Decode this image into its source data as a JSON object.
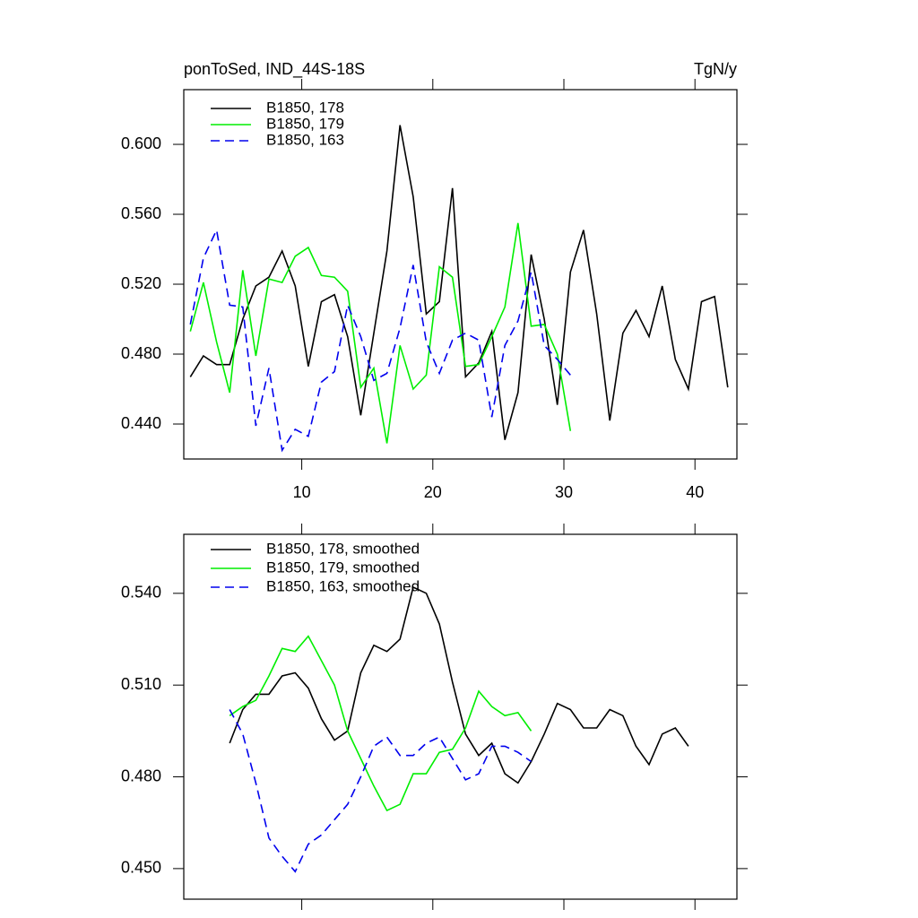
{
  "chart_data": [
    {
      "type": "line",
      "title": "ponToSed, IND_44S-18S",
      "units": "TgN/y",
      "xlim": [
        1,
        43.2
      ],
      "ylim": [
        0.42,
        0.6313
      ],
      "xticks": [
        10,
        20,
        30,
        40
      ],
      "xtick_labels": true,
      "yticks": [
        {
          "value": 0.44,
          "label": "0.440"
        },
        {
          "value": 0.48,
          "label": "0.480"
        },
        {
          "value": 0.52,
          "label": "0.520"
        },
        {
          "value": 0.56,
          "label": "0.560"
        },
        {
          "value": 0.6,
          "label": "0.600"
        }
      ],
      "legend": "top-left",
      "series": [
        {
          "name": "B1850, 178",
          "color": "#000000",
          "dash": false,
          "x": [
            1.5,
            2.5,
            3.5,
            4.5,
            5.5,
            6.5,
            7.5,
            8.5,
            9.5,
            10.5,
            11.5,
            12.5,
            13.5,
            14.5,
            15.5,
            16.5,
            17.5,
            18.5,
            19.5,
            20.5,
            21.5,
            22.5,
            23.5,
            24.5,
            25.5,
            26.5,
            27.5,
            28.5,
            29.5,
            30.5,
            31.5,
            32.5,
            33.5,
            34.5,
            35.5,
            36.5,
            37.5,
            38.5,
            39.5,
            40.5,
            41.5,
            42.5
          ],
          "values": [
            0.467,
            0.479,
            0.474,
            0.474,
            0.5,
            0.519,
            0.524,
            0.539,
            0.519,
            0.473,
            0.51,
            0.514,
            0.49,
            0.445,
            0.492,
            0.539,
            0.611,
            0.57,
            0.503,
            0.51,
            0.575,
            0.467,
            0.475,
            0.493,
            0.431,
            0.458,
            0.537,
            0.5,
            0.451,
            0.527,
            0.551,
            0.503,
            0.442,
            0.492,
            0.505,
            0.49,
            0.519,
            0.477,
            0.46,
            0.51,
            0.513,
            0.461
          ]
        },
        {
          "name": "B1850, 179",
          "color": "#00ee00",
          "dash": false,
          "x": [
            1.5,
            2.5,
            3.5,
            4.5,
            5.5,
            6.5,
            7.5,
            8.5,
            9.5,
            10.5,
            11.5,
            12.5,
            13.5,
            14.5,
            15.5,
            16.5,
            17.5,
            18.5,
            19.5,
            20.5,
            21.5,
            22.5,
            23.5,
            24.5,
            25.5,
            26.5,
            27.5,
            28.5,
            29.5,
            30.5
          ],
          "values": [
            0.493,
            0.521,
            0.487,
            0.458,
            0.528,
            0.479,
            0.523,
            0.521,
            0.536,
            0.541,
            0.525,
            0.524,
            0.516,
            0.461,
            0.472,
            0.429,
            0.485,
            0.46,
            0.468,
            0.53,
            0.524,
            0.473,
            0.474,
            0.49,
            0.507,
            0.555,
            0.496,
            0.497,
            0.48,
            0.436
          ]
        },
        {
          "name": "B1850, 163",
          "color": "#0000ee",
          "dash": true,
          "x": [
            1.5,
            2.5,
            3.5,
            4.5,
            5.5,
            6.5,
            7.5,
            8.5,
            9.5,
            10.5,
            11.5,
            12.5,
            13.5,
            14.5,
            15.5,
            16.5,
            17.5,
            18.5,
            19.5,
            20.5,
            21.5,
            22.5,
            23.5,
            24.5,
            25.5,
            26.5,
            27.5,
            28.5,
            29.5,
            30.5
          ],
          "values": [
            0.497,
            0.535,
            0.551,
            0.508,
            0.507,
            0.439,
            0.472,
            0.425,
            0.437,
            0.433,
            0.464,
            0.47,
            0.508,
            0.49,
            0.465,
            0.469,
            0.495,
            0.531,
            0.487,
            0.469,
            0.488,
            0.492,
            0.488,
            0.444,
            0.485,
            0.499,
            0.527,
            0.485,
            0.477,
            0.468
          ]
        }
      ]
    },
    {
      "type": "line",
      "xlim": [
        1,
        43.2
      ],
      "ylim": [
        0.44,
        0.5593
      ],
      "xticks": [
        10,
        20,
        30,
        40
      ],
      "xtick_labels": false,
      "yticks": [
        {
          "value": 0.45,
          "label": "0.450"
        },
        {
          "value": 0.48,
          "label": "0.480"
        },
        {
          "value": 0.51,
          "label": "0.510"
        },
        {
          "value": 0.54,
          "label": "0.540"
        }
      ],
      "legend": "top-left",
      "series": [
        {
          "name": "B1850, 178, smoothed",
          "color": "#000000",
          "dash": false,
          "x": [
            4.5,
            5.5,
            6.5,
            7.5,
            8.5,
            9.5,
            10.5,
            11.5,
            12.5,
            13.5,
            14.5,
            15.5,
            16.5,
            17.5,
            18.5,
            19.5,
            20.5,
            21.5,
            22.5,
            23.5,
            24.5,
            25.5,
            26.5,
            27.5,
            28.5,
            29.5,
            30.5,
            31.5,
            32.5,
            33.5,
            34.5,
            35.5,
            36.5,
            37.5,
            38.5,
            39.5
          ],
          "values": [
            0.491,
            0.502,
            0.507,
            0.507,
            0.513,
            0.514,
            0.509,
            0.499,
            0.492,
            0.495,
            0.514,
            0.523,
            0.521,
            0.525,
            0.542,
            0.54,
            0.53,
            0.511,
            0.494,
            0.487,
            0.491,
            0.481,
            0.478,
            0.485,
            0.494,
            0.504,
            0.502,
            0.496,
            0.496,
            0.502,
            0.5,
            0.49,
            0.484,
            0.494,
            0.496,
            0.49
          ]
        },
        {
          "name": "B1850, 179, smoothed",
          "color": "#00ee00",
          "dash": false,
          "x": [
            4.5,
            5.5,
            6.5,
            7.5,
            8.5,
            9.5,
            10.5,
            11.5,
            12.5,
            13.5,
            14.5,
            15.5,
            16.5,
            17.5,
            18.5,
            19.5,
            20.5,
            21.5,
            22.5,
            23.5,
            24.5,
            25.5,
            26.5,
            27.5
          ],
          "values": [
            0.5,
            0.503,
            0.505,
            0.513,
            0.522,
            0.521,
            0.526,
            0.518,
            0.51,
            0.495,
            0.486,
            0.477,
            0.469,
            0.471,
            0.481,
            0.481,
            0.488,
            0.489,
            0.496,
            0.508,
            0.503,
            0.5,
            0.501,
            0.495
          ]
        },
        {
          "name": "B1850, 163, smoothed",
          "color": "#0000ee",
          "dash": true,
          "x": [
            4.5,
            5.5,
            6.5,
            7.5,
            8.5,
            9.5,
            10.5,
            11.5,
            12.5,
            13.5,
            14.5,
            15.5,
            16.5,
            17.5,
            18.5,
            19.5,
            20.5,
            21.5,
            22.5,
            23.5,
            24.5,
            25.5,
            26.5,
            27.5
          ],
          "values": [
            0.502,
            0.494,
            0.478,
            0.46,
            0.454,
            0.449,
            0.458,
            0.461,
            0.466,
            0.471,
            0.48,
            0.49,
            0.493,
            0.487,
            0.487,
            0.491,
            0.493,
            0.486,
            0.479,
            0.481,
            0.49,
            0.49,
            0.488,
            0.485
          ]
        }
      ]
    }
  ]
}
